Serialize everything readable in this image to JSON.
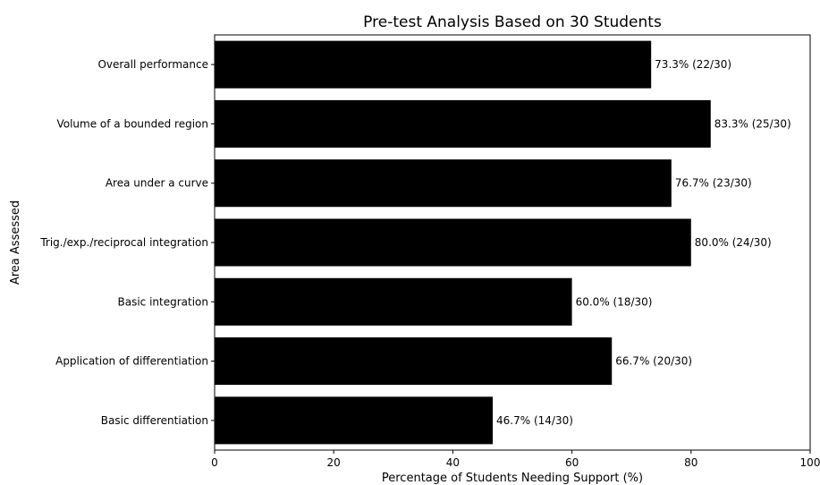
{
  "chart_data": {
    "type": "bar",
    "orientation": "horizontal",
    "title": "Pre-test Analysis Based on 30 Students",
    "xlabel": "Percentage of Students Needing Support (%)",
    "ylabel": "Area Assessed",
    "xlim": [
      0,
      100
    ],
    "xticks": [
      "0",
      "20",
      "40",
      "60",
      "80",
      "100"
    ],
    "grid": false,
    "bar_color": "#000000",
    "categories": [
      "Overall performance",
      "Volume of a bounded region",
      "Area under a curve",
      "Trig./exp./reciprocal integration",
      "Basic integration",
      "Application of differentiation",
      "Basic differentiation"
    ],
    "values": [
      73.3,
      83.3,
      76.7,
      80.0,
      60.0,
      66.7,
      46.7
    ],
    "data_labels": [
      "73.3% (22/30)",
      "83.3% (25/30)",
      "76.7% (23/30)",
      "80.0% (24/30)",
      "60.0% (18/30)",
      "66.7% (20/30)",
      "46.7% (14/30)"
    ]
  }
}
